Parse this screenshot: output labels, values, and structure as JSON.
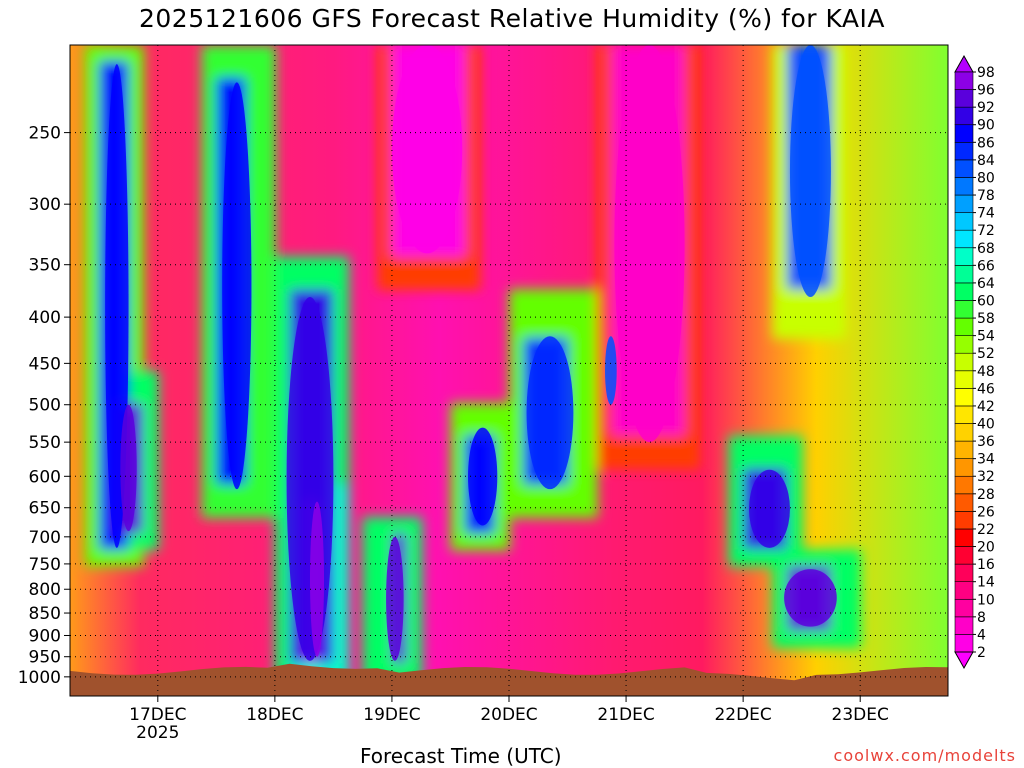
{
  "chart_data": {
    "type": "heatmap",
    "title": "2025121606 GFS Forecast Relative Humidity (%) for KAIA",
    "xlabel": "Forecast Time (UTC)",
    "ylabel": "",
    "credit": "coolwx.com/modelts",
    "x_ticks": [
      "17DEC",
      "18DEC",
      "19DEC",
      "20DEC",
      "21DEC",
      "22DEC",
      "23DEC"
    ],
    "x_year_label": "2025",
    "x_day_range": [
      16.25,
      23.75
    ],
    "y_ticks": [
      250,
      300,
      350,
      400,
      450,
      500,
      550,
      600,
      650,
      700,
      750,
      800,
      850,
      900,
      950,
      1000
    ],
    "y_range_hpa": [
      200,
      1050
    ],
    "colorbar_levels": [
      2,
      4,
      8,
      10,
      14,
      16,
      20,
      22,
      26,
      28,
      32,
      34,
      36,
      40,
      42,
      46,
      48,
      52,
      54,
      58,
      60,
      64,
      66,
      68,
      72,
      74,
      78,
      80,
      84,
      86,
      90,
      92,
      96,
      98
    ],
    "colorbar_colors": [
      "#ff00ff",
      "#ff00e6",
      "#ff00c8",
      "#ff00a0",
      "#ff0082",
      "#ff005a",
      "#ff0032",
      "#ff0000",
      "#ff3c00",
      "#ff5a00",
      "#ff7800",
      "#ff9600",
      "#ffb400",
      "#ffd200",
      "#ffe600",
      "#ffff00",
      "#e6ff00",
      "#c8ff00",
      "#96ff00",
      "#64ff00",
      "#32ff32",
      "#00ff64",
      "#00ff96",
      "#00ffc8",
      "#00e6ff",
      "#00c8ff",
      "#00a0ff",
      "#0078ff",
      "#0050ff",
      "#0028ff",
      "#0000ff",
      "#3200e6",
      "#5a00dc",
      "#8c00e6",
      "#b400ff"
    ],
    "grid": true,
    "regions_rh_percent": [
      {
        "day_start": 16.55,
        "day_end": 16.75,
        "hpa_top": 210,
        "hpa_bottom": 720,
        "rh": 86
      },
      {
        "day_start": 16.68,
        "day_end": 16.82,
        "hpa_top": 500,
        "hpa_bottom": 690,
        "rh": 92
      },
      {
        "day_start": 17.55,
        "day_end": 17.8,
        "hpa_top": 220,
        "hpa_bottom": 620,
        "rh": 88
      },
      {
        "day_start": 18.1,
        "day_end": 18.5,
        "hpa_top": 380,
        "hpa_bottom": 960,
        "rh": 90
      },
      {
        "day_start": 18.3,
        "day_end": 18.42,
        "hpa_top": 640,
        "hpa_bottom": 950,
        "rh": 96
      },
      {
        "day_start": 18.95,
        "day_end": 19.1,
        "hpa_top": 700,
        "hpa_bottom": 960,
        "rh": 92
      },
      {
        "day_start": 19.65,
        "day_end": 19.9,
        "hpa_top": 530,
        "hpa_bottom": 680,
        "rh": 86
      },
      {
        "day_start": 20.15,
        "day_end": 20.55,
        "hpa_top": 420,
        "hpa_bottom": 620,
        "rh": 84
      },
      {
        "day_start": 20.82,
        "day_end": 20.92,
        "hpa_top": 420,
        "hpa_bottom": 500,
        "rh": 82
      },
      {
        "day_start": 22.05,
        "day_end": 22.4,
        "hpa_top": 590,
        "hpa_bottom": 720,
        "rh": 90
      },
      {
        "day_start": 22.35,
        "day_end": 22.8,
        "hpa_top": 760,
        "hpa_bottom": 880,
        "rh": 92
      },
      {
        "day_start": 22.4,
        "day_end": 22.75,
        "hpa_top": 200,
        "hpa_bottom": 380,
        "rh": 80
      },
      {
        "day_start": 19.0,
        "day_end": 19.6,
        "hpa_top": 200,
        "hpa_bottom": 340,
        "rh": 2
      },
      {
        "day_start": 20.9,
        "day_end": 21.5,
        "hpa_top": 200,
        "hpa_bottom": 550,
        "rh": 4
      }
    ]
  }
}
